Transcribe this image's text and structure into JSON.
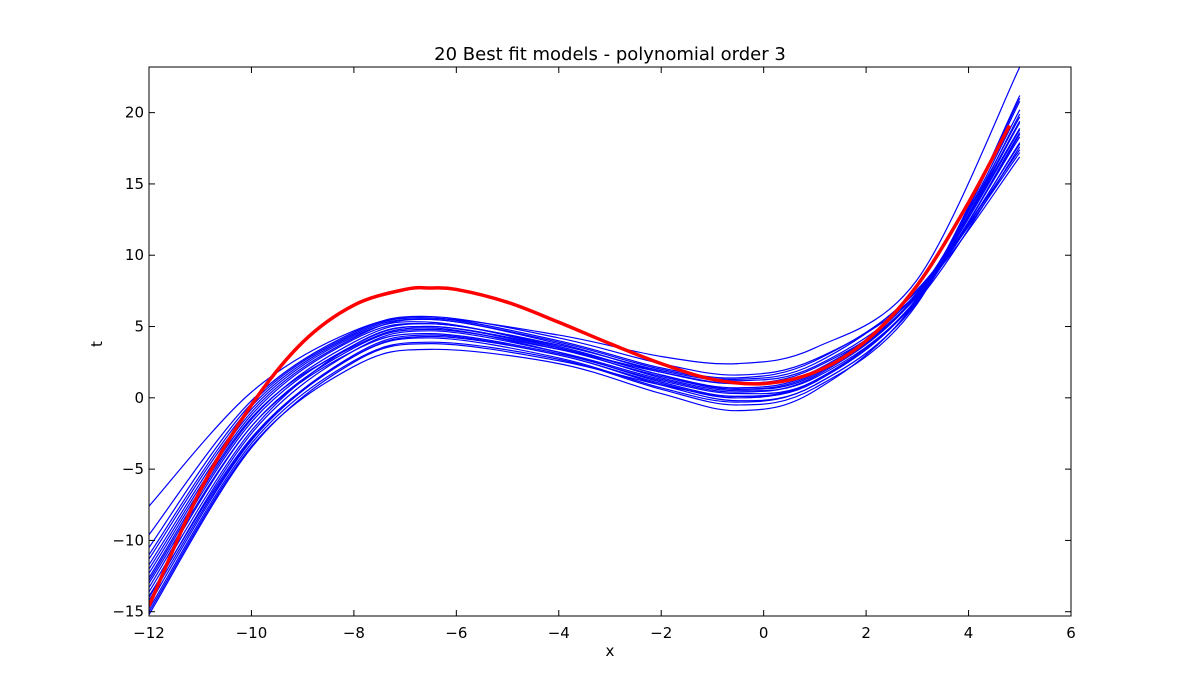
{
  "chart_data": {
    "type": "line",
    "title": "20 Best fit models - polynomial order 3",
    "xlabel": "x",
    "ylabel": "t",
    "xlim": [
      -12,
      6
    ],
    "ylim": [
      -15.3,
      23.2
    ],
    "xticks": [
      -12,
      -10,
      -8,
      -6,
      -4,
      -2,
      0,
      2,
      4,
      6
    ],
    "xtick_labels": [
      "−12",
      "−10",
      "−8",
      "−6",
      "−4",
      "−2",
      "0",
      "2",
      "4",
      "6"
    ],
    "yticks": [
      -15,
      -10,
      -5,
      0,
      5,
      10,
      15,
      20
    ],
    "ytick_labels": [
      "−15",
      "−10",
      "−5",
      "0",
      "5",
      "10",
      "15",
      "20"
    ],
    "grid": false,
    "legend": "none",
    "true_model": {
      "color": "#ff0000",
      "x": [
        -12,
        -11,
        -10,
        -9,
        -8,
        -7,
        -6.5,
        -6,
        -5,
        -4,
        -3,
        -2,
        -1,
        0,
        1,
        2,
        3,
        4,
        4.8
      ],
      "values": [
        -14.6,
        -6.5,
        -0.5,
        3.9,
        6.5,
        7.6,
        7.7,
        7.6,
        6.7,
        5.3,
        3.8,
        2.4,
        1.3,
        1.0,
        1.8,
        4.0,
        7.9,
        13.7,
        19.1
      ]
    },
    "series_color": "#0000ff",
    "series": [
      {
        "x": [
          -12,
          -10,
          -8,
          -6.5,
          -4,
          -2,
          -0.5,
          1,
          3,
          5
        ],
        "values": [
          -13.3,
          -2.0,
          3.5,
          4.8,
          3.4,
          1.8,
          1.0,
          1.9,
          7.4,
          18.9
        ]
      },
      {
        "x": [
          -12,
          -10,
          -8,
          -6.5,
          -4,
          -2,
          -0.5,
          1,
          3,
          5
        ],
        "values": [
          -12.0,
          -1.2,
          4.1,
          5.2,
          3.7,
          1.9,
          1.2,
          2.2,
          7.3,
          17.8
        ]
      },
      {
        "x": [
          -12,
          -10,
          -8,
          -6.5,
          -4,
          -2,
          -0.5,
          1,
          3,
          5
        ],
        "values": [
          -14.0,
          -2.5,
          3.3,
          4.7,
          3.2,
          1.3,
          0.4,
          1.5,
          7.2,
          19.4
        ]
      },
      {
        "x": [
          -12,
          -10,
          -8,
          -6.5,
          -4,
          -2,
          -0.5,
          1,
          3,
          5
        ],
        "values": [
          -11.3,
          -0.8,
          4.3,
          5.3,
          3.5,
          1.4,
          0.5,
          1.4,
          6.9,
          18.5
        ]
      },
      {
        "x": [
          -12,
          -10,
          -8,
          -6.5,
          -4,
          -2,
          -0.5,
          1,
          3,
          5
        ],
        "values": [
          -15.2,
          -3.5,
          2.5,
          3.8,
          2.6,
          0.9,
          0.1,
          1.1,
          7.0,
          20.2
        ]
      },
      {
        "x": [
          -12,
          -10,
          -8,
          -6.5,
          -4,
          -2,
          -0.5,
          1,
          3,
          5
        ],
        "values": [
          -13.6,
          -2.3,
          3.7,
          5.0,
          3.5,
          1.6,
          0.6,
          1.6,
          7.3,
          19.7
        ]
      },
      {
        "x": [
          -12,
          -10,
          -8,
          -6.5,
          -4,
          -2,
          -0.5,
          1,
          3,
          5
        ],
        "values": [
          -12.6,
          -1.5,
          3.9,
          5.2,
          3.6,
          1.6,
          0.7,
          1.8,
          7.2,
          18.3
        ]
      },
      {
        "x": [
          -12,
          -10,
          -8,
          -6.5,
          -4,
          -2,
          -0.5,
          1,
          3,
          5
        ],
        "values": [
          -14.5,
          -3.0,
          2.9,
          4.3,
          3.0,
          0.9,
          -0.2,
          0.9,
          6.8,
          20.8
        ]
      },
      {
        "x": [
          -12,
          -10,
          -8,
          -6.5,
          -4,
          -2,
          -0.5,
          1,
          3,
          5
        ],
        "values": [
          -9.6,
          -0.2,
          4.6,
          5.7,
          4.2,
          2.4,
          1.6,
          2.7,
          7.3,
          16.9
        ]
      },
      {
        "x": [
          -12,
          -10,
          -8,
          -6.5,
          -4,
          -2,
          -0.5,
          1,
          3,
          5
        ],
        "values": [
          -7.6,
          0.4,
          4.7,
          5.6,
          4.4,
          2.9,
          2.4,
          3.5,
          8.3,
          23.2
        ]
      },
      {
        "x": [
          -12,
          -10,
          -8,
          -6.5,
          -4,
          -2,
          -0.5,
          1,
          3,
          5
        ],
        "values": [
          -11.0,
          -0.6,
          4.4,
          5.5,
          3.9,
          2.0,
          1.3,
          2.4,
          7.6,
          17.4
        ]
      },
      {
        "x": [
          -12,
          -10,
          -8,
          -6.5,
          -4,
          -2,
          -0.5,
          1,
          3,
          5
        ],
        "values": [
          -13.0,
          -2.0,
          3.3,
          4.5,
          3.1,
          1.2,
          0.3,
          1.2,
          6.9,
          18.6
        ]
      },
      {
        "x": [
          -12,
          -10,
          -8,
          -6.5,
          -4,
          -2,
          -0.5,
          1,
          3,
          5
        ],
        "values": [
          -14.8,
          -3.2,
          2.6,
          3.9,
          2.7,
          0.6,
          -0.5,
          0.7,
          6.6,
          21.2
        ]
      },
      {
        "x": [
          -12,
          -10,
          -8,
          -6.5,
          -4,
          -2,
          -0.5,
          1,
          3,
          5
        ],
        "values": [
          -12.3,
          -1.4,
          3.6,
          4.9,
          3.2,
          1.1,
          0.1,
          1.2,
          6.8,
          17.6
        ]
      },
      {
        "x": [
          -12,
          -10,
          -8,
          -6.5,
          -4,
          -2,
          -0.5,
          1,
          3,
          5
        ],
        "values": [
          -13.9,
          -2.8,
          2.9,
          4.2,
          2.8,
          0.7,
          -0.3,
          0.9,
          6.7,
          19.9
        ]
      },
      {
        "x": [
          -12,
          -10,
          -8,
          -6.5,
          -4,
          -2,
          -0.5,
          1,
          3,
          5
        ],
        "values": [
          -15.0,
          -3.4,
          2.2,
          3.4,
          2.4,
          0.3,
          -0.9,
          0.5,
          6.9,
          21.0
        ]
      },
      {
        "x": [
          -12,
          -10,
          -8,
          -6.5,
          -4,
          -2,
          -0.5,
          1,
          3,
          5
        ],
        "values": [
          -11.7,
          -1.0,
          4.2,
          5.5,
          3.8,
          1.8,
          1.0,
          2.1,
          7.1,
          17.9
        ]
      },
      {
        "x": [
          -12,
          -10,
          -8,
          -6.5,
          -4,
          -2,
          -0.5,
          1,
          3,
          5
        ],
        "values": [
          -12.8,
          -1.7,
          3.7,
          5.0,
          3.4,
          1.5,
          0.6,
          1.7,
          7.2,
          18.8
        ]
      },
      {
        "x": [
          -12,
          -10,
          -8,
          -6.5,
          -4,
          -2,
          -0.5,
          1,
          3,
          5
        ],
        "values": [
          -14.2,
          -2.9,
          3.0,
          4.4,
          3.0,
          1.0,
          0.0,
          1.2,
          7.0,
          19.3
        ]
      },
      {
        "x": [
          -12,
          -10,
          -8,
          -6.5,
          -4,
          -2,
          -0.5,
          1,
          3,
          5
        ],
        "values": [
          -10.5,
          -0.4,
          4.5,
          5.6,
          4.0,
          2.1,
          1.4,
          2.6,
          7.5,
          17.2
        ]
      }
    ]
  }
}
